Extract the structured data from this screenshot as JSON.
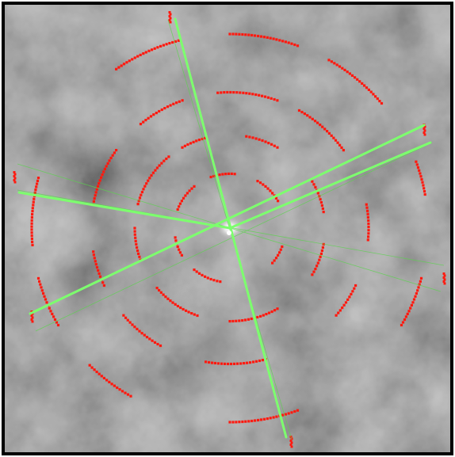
{
  "image": {
    "background_color": "#2c2c2c",
    "border_color": "#000000",
    "center_glow_color": "#ffffff"
  },
  "overlays": {
    "line_color": "#7dff6e",
    "thin_line_color": "#5ad44c",
    "dot_color": "#ff1a10",
    "center_line_count": 4,
    "ring_count": 4
  }
}
